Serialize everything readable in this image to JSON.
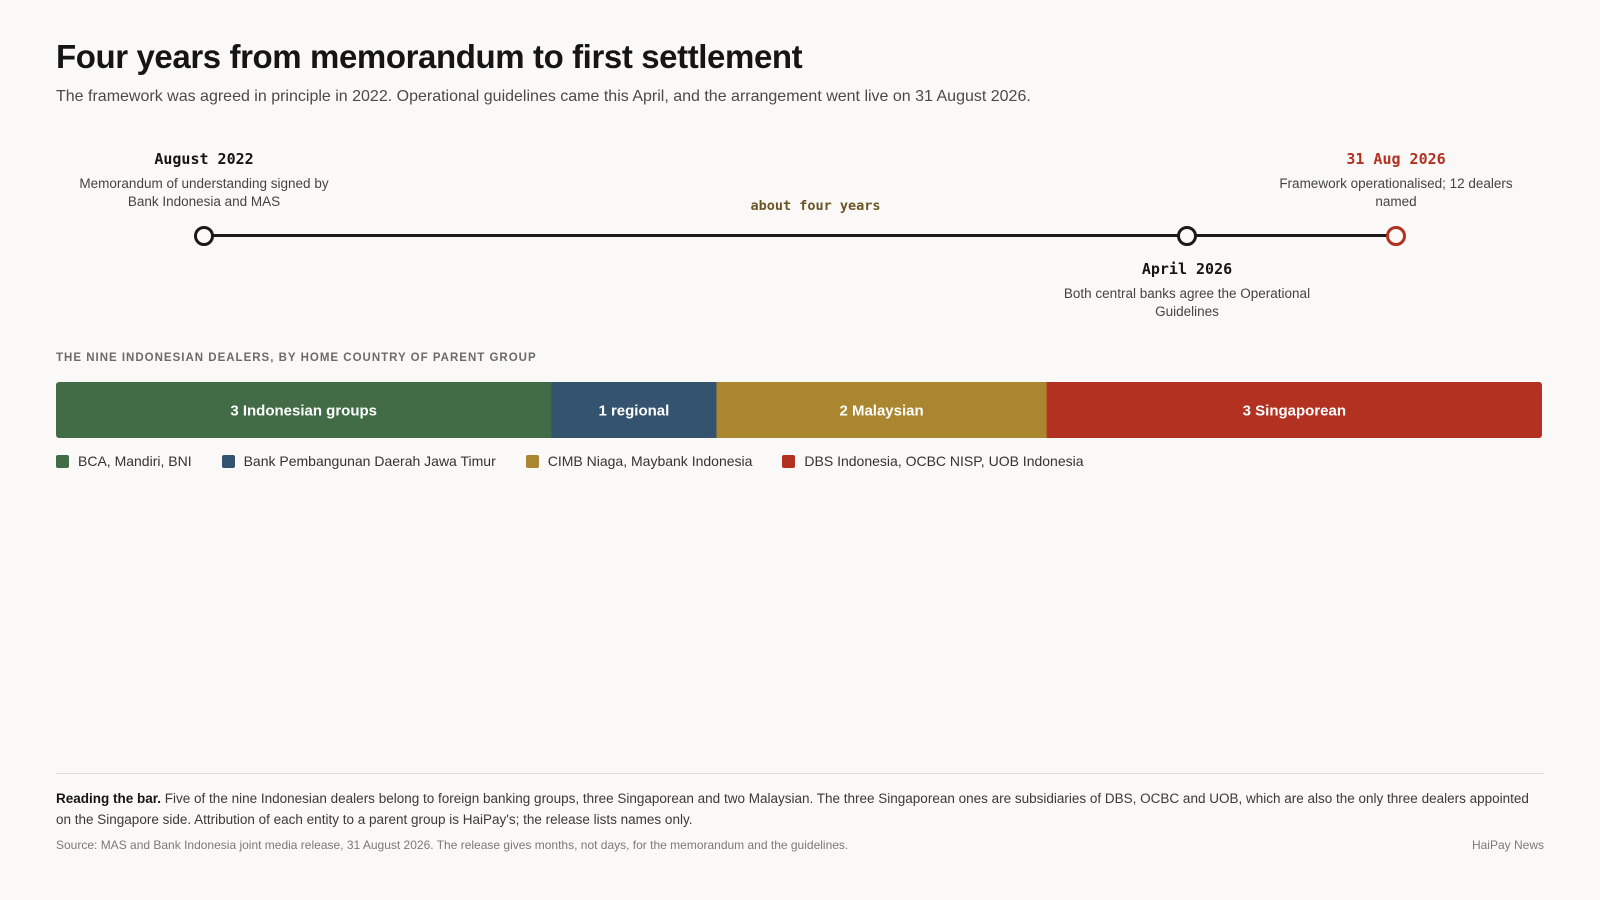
{
  "title": "Four years from memorandum to first settlement",
  "subtitle": "The framework was agreed in principle in 2022. Operational guidelines came this April, and the arrangement went live on 31 August 2026.",
  "timeline": {
    "events": [
      {
        "date": "August 2022",
        "description": "Memorandum of understanding signed by Bank Indonesia and MAS",
        "label_position": "above",
        "highlight": false
      },
      {
        "date": "April 2026",
        "description": "Both central banks agree the Operational Guidelines",
        "label_position": "below",
        "highlight": false
      },
      {
        "date": "31 Aug 2026",
        "description": "Framework operationalised; 12 dealers named",
        "label_position": "above",
        "highlight": true
      }
    ],
    "span_label": "about four years"
  },
  "chart_data": {
    "type": "bar",
    "orientation": "horizontal-stacked",
    "title": "THE NINE INDONESIAN DEALERS, BY HOME COUNTRY OF PARENT GROUP",
    "total": 9,
    "series": [
      {
        "label": "3 Indonesian groups",
        "value": 3,
        "color": "#416c45",
        "members": "BCA, Mandiri, BNI"
      },
      {
        "label": "1 regional",
        "value": 1,
        "color": "#33536e",
        "members": "Bank Pembangunan Daerah Jawa Timur"
      },
      {
        "label": "2 Malaysian",
        "value": 2,
        "color": "#a9862f",
        "members": "CIMB Niaga, Maybank Indonesia"
      },
      {
        "label": "3 Singaporean",
        "value": 3,
        "color": "#b23121",
        "members": "DBS Indonesia, OCBC NISP, UOB Indonesia"
      }
    ]
  },
  "note": {
    "lead": "Reading the bar.",
    "text": "Five of the nine Indonesian dealers belong to foreign banking groups, three Singaporean and two Malaysian. The three Singaporean ones are subsidiaries of DBS, OCBC and UOB, which are also the only three dealers appointed on the Singapore side. Attribution of each entity to a parent group is HaiPay's; the release lists names only."
  },
  "source": "Source: MAS and Bank Indonesia joint media release, 31 August 2026. The release gives months, not days, for the memorandum and the guidelines.",
  "credit": "HaiPay News"
}
